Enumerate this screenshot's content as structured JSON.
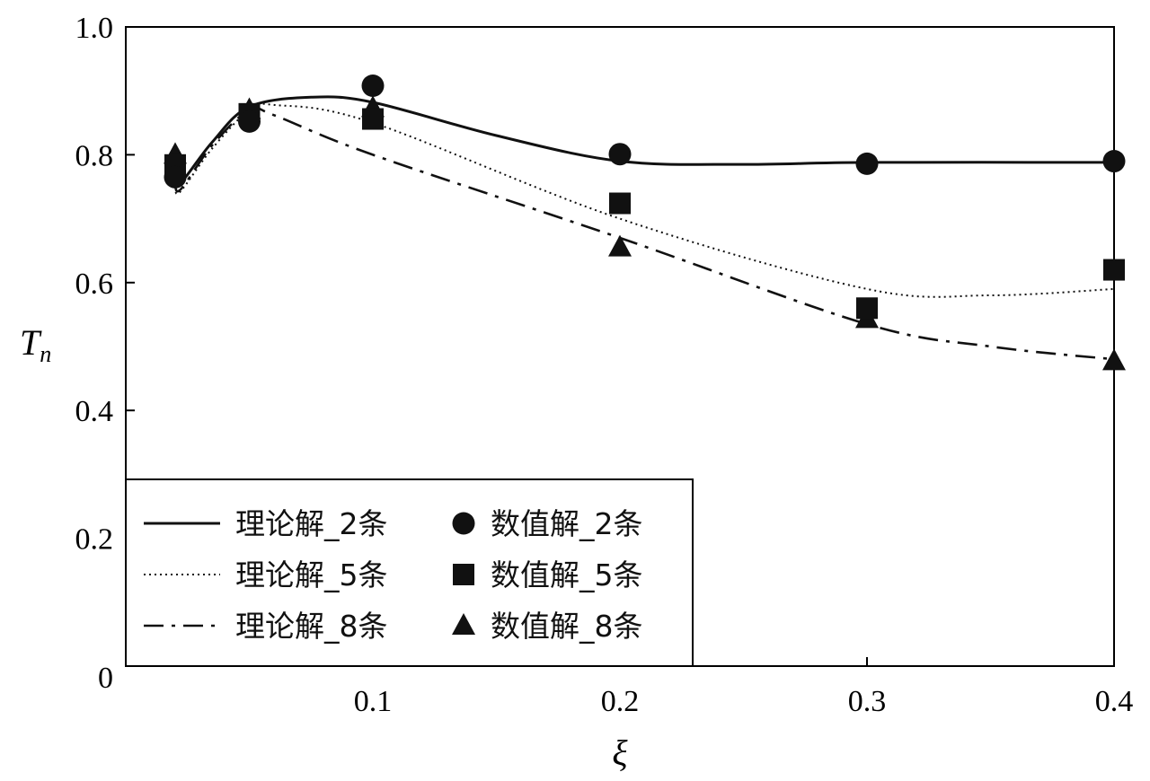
{
  "chart_data": {
    "type": "line",
    "xlabel": "ξ",
    "ylabel": {
      "main": "T",
      "sub": "n"
    },
    "xlim": [
      0,
      0.4
    ],
    "ylim": [
      0,
      1.0
    ],
    "x_ticks": [
      {
        "value": 0.0,
        "label": "0"
      },
      {
        "value": 0.1,
        "label": "0.1"
      },
      {
        "value": 0.2,
        "label": "0.2"
      },
      {
        "value": 0.3,
        "label": "0.3"
      },
      {
        "value": 0.4,
        "label": "0.4"
      }
    ],
    "y_ticks": [
      {
        "value": 0.2,
        "label": "0.2"
      },
      {
        "value": 0.4,
        "label": "0.4"
      },
      {
        "value": 0.6,
        "label": "0.6"
      },
      {
        "value": 0.8,
        "label": "0.8"
      },
      {
        "value": 1.0,
        "label": "1.0"
      }
    ],
    "grid": false,
    "legend_position": "bottom-left",
    "theory_series": [
      {
        "name": "理论解_2条",
        "dash": "solid",
        "color": "#111111",
        "points": [
          [
            0.02,
            0.77
          ],
          [
            0.022,
            0.755
          ],
          [
            0.035,
            0.82
          ],
          [
            0.05,
            0.875
          ],
          [
            0.075,
            0.89
          ],
          [
            0.1,
            0.882
          ],
          [
            0.15,
            0.83
          ],
          [
            0.2,
            0.79
          ],
          [
            0.25,
            0.785
          ],
          [
            0.3,
            0.788
          ],
          [
            0.4,
            0.788
          ]
        ]
      },
      {
        "name": "理论解_5条",
        "dash": "dotted",
        "color": "#111111",
        "points": [
          [
            0.02,
            0.75
          ],
          [
            0.022,
            0.742
          ],
          [
            0.035,
            0.81
          ],
          [
            0.05,
            0.87
          ],
          [
            0.06,
            0.878
          ],
          [
            0.1,
            0.85
          ],
          [
            0.2,
            0.7
          ],
          [
            0.3,
            0.59
          ],
          [
            0.35,
            0.58
          ],
          [
            0.4,
            0.59
          ]
        ]
      },
      {
        "name": "理论解_8条",
        "dash": "dashdot",
        "color": "#111111",
        "points": [
          [
            0.02,
            0.76
          ],
          [
            0.022,
            0.745
          ],
          [
            0.035,
            0.815
          ],
          [
            0.05,
            0.87
          ],
          [
            0.06,
            0.862
          ],
          [
            0.1,
            0.8
          ],
          [
            0.2,
            0.67
          ],
          [
            0.3,
            0.535
          ],
          [
            0.35,
            0.5
          ],
          [
            0.4,
            0.48
          ]
        ]
      }
    ],
    "numeric_series": [
      {
        "name": "数值解_2条",
        "marker": "circle",
        "color": "#111111",
        "points": [
          [
            0.02,
            0.765
          ],
          [
            0.05,
            0.852
          ],
          [
            0.1,
            0.908
          ],
          [
            0.2,
            0.801
          ],
          [
            0.3,
            0.786
          ],
          [
            0.4,
            0.79
          ]
        ]
      },
      {
        "name": "数值解_5条",
        "marker": "square",
        "color": "#111111",
        "points": [
          [
            0.02,
            0.784
          ],
          [
            0.05,
            0.864
          ],
          [
            0.1,
            0.856
          ],
          [
            0.2,
            0.724
          ],
          [
            0.3,
            0.56
          ],
          [
            0.4,
            0.62
          ]
        ]
      },
      {
        "name": "数值解_8条",
        "marker": "triangle",
        "color": "#111111",
        "points": [
          [
            0.02,
            0.8
          ],
          [
            0.05,
            0.87
          ],
          [
            0.1,
            0.873
          ],
          [
            0.2,
            0.655
          ],
          [
            0.3,
            0.543
          ],
          [
            0.4,
            0.477
          ]
        ]
      }
    ]
  }
}
